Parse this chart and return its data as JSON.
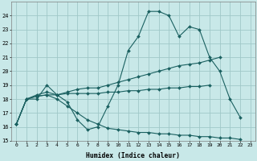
{
  "xlabel": "Humidex (Indice chaleur)",
  "bg_color": "#c8e8e8",
  "grid_color": "#a0c8c8",
  "line_color": "#1a6060",
  "x_values": [
    0,
    1,
    2,
    3,
    4,
    5,
    6,
    7,
    8,
    9,
    10,
    11,
    12,
    13,
    14,
    15,
    16,
    17,
    18,
    19,
    20,
    21,
    22,
    23
  ],
  "y_curve1": [
    16.2,
    18.0,
    18.0,
    19.0,
    18.3,
    17.8,
    16.5,
    15.8,
    16.0,
    17.5,
    19.0,
    21.5,
    22.5,
    24.3,
    24.3,
    24.0,
    22.5,
    23.2,
    23.0,
    21.0,
    20.0,
    18.0,
    16.7,
    null
  ],
  "y_curve2": [
    16.2,
    18.0,
    18.3,
    18.5,
    18.3,
    18.5,
    18.7,
    18.8,
    18.8,
    19.0,
    19.2,
    19.4,
    19.6,
    19.8,
    20.0,
    20.2,
    20.4,
    20.5,
    20.6,
    20.8,
    21.0,
    null,
    null,
    null
  ],
  "y_curve3": [
    16.2,
    18.0,
    18.2,
    18.3,
    18.3,
    18.4,
    18.4,
    18.4,
    18.4,
    18.5,
    18.5,
    18.6,
    18.6,
    18.7,
    18.7,
    18.8,
    18.8,
    18.9,
    18.9,
    19.0,
    null,
    null,
    null,
    null
  ],
  "y_curve4": [
    16.2,
    18.0,
    18.2,
    18.3,
    18.0,
    17.5,
    17.0,
    16.5,
    16.2,
    15.9,
    15.8,
    15.7,
    15.6,
    15.6,
    15.5,
    15.5,
    15.4,
    15.4,
    15.3,
    15.3,
    15.2,
    15.2,
    15.1,
    null
  ],
  "ylim": [
    15,
    25
  ],
  "yticks": [
    15,
    16,
    17,
    18,
    19,
    20,
    21,
    22,
    23,
    24
  ],
  "xlim": [
    -0.5,
    23.5
  ],
  "xticks": [
    0,
    1,
    2,
    3,
    4,
    5,
    6,
    7,
    8,
    9,
    10,
    11,
    12,
    13,
    14,
    15,
    16,
    17,
    18,
    19,
    20,
    21,
    22,
    23
  ]
}
